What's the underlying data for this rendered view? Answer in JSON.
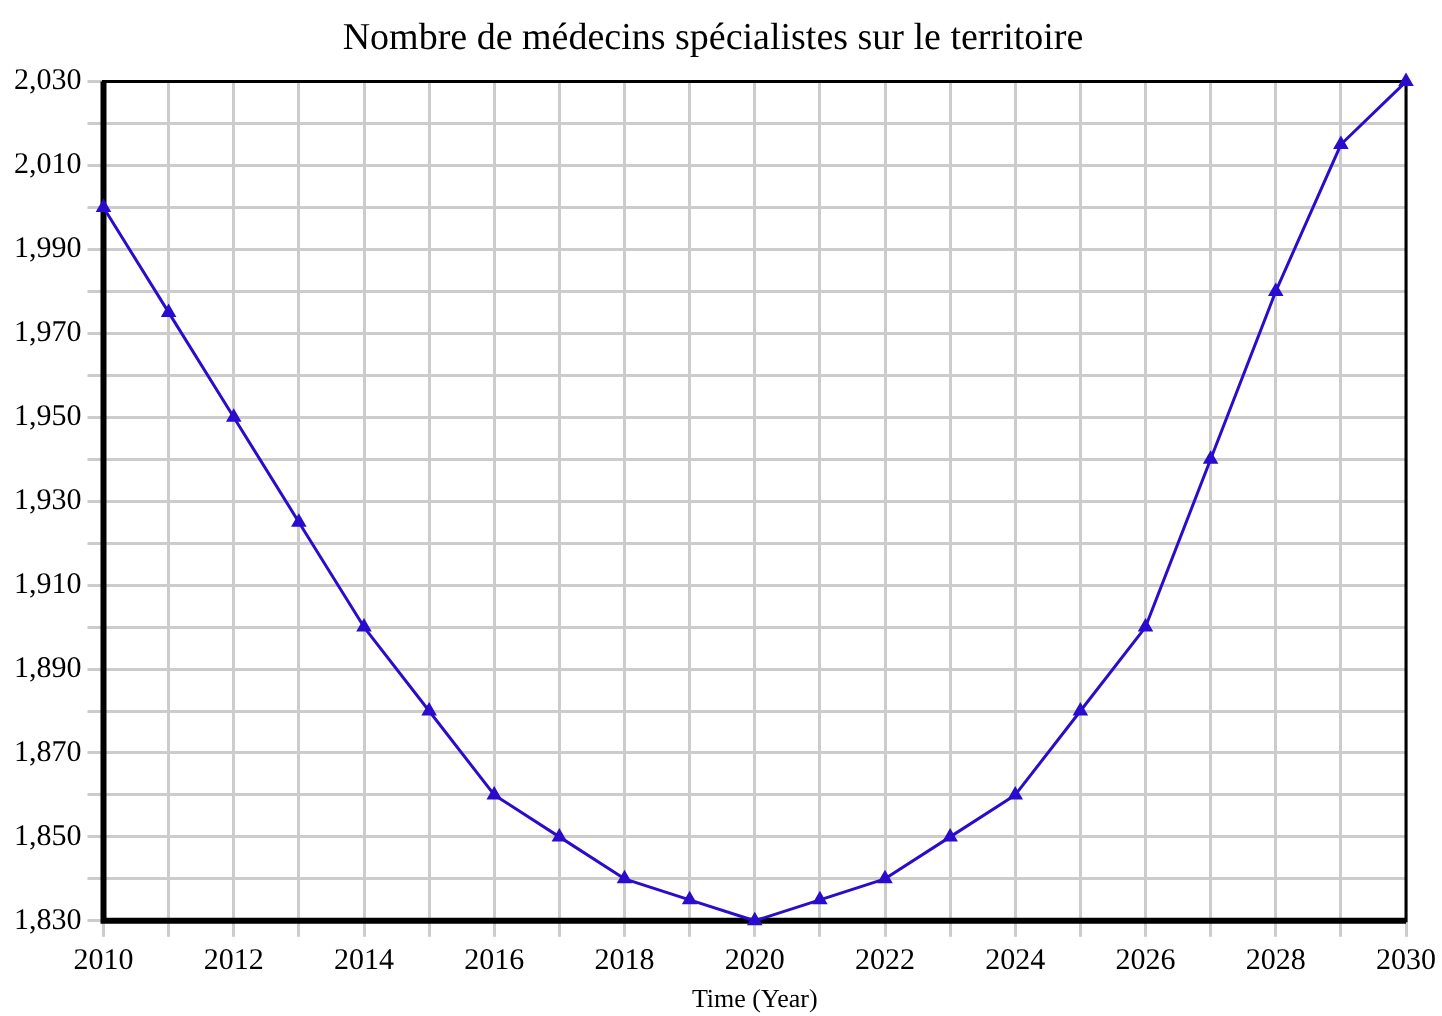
{
  "chart_data": {
    "type": "line",
    "title": "Nombre de médecins spécialistes sur le territoire",
    "xlabel": "Time (Year)",
    "x": [
      2010,
      2011,
      2012,
      2013,
      2014,
      2015,
      2016,
      2017,
      2018,
      2019,
      2020,
      2021,
      2022,
      2023,
      2024,
      2025,
      2026,
      2027,
      2028,
      2029,
      2030
    ],
    "series": [
      {
        "color": "#2a0ccc",
        "values": [
          2000,
          1975,
          1950,
          1925,
          1900,
          1880,
          1860,
          1850,
          1840,
          1835,
          1830,
          1835,
          1840,
          1850,
          1860,
          1880,
          1900,
          1940,
          1980,
          2015,
          2030
        ]
      }
    ],
    "xlim": [
      2010,
      2030
    ],
    "xticks": [
      2010,
      {
        "value": 2011,
        "label": null
      },
      2012,
      {
        "value": 2013,
        "label": null
      },
      2014,
      {
        "value": 2015,
        "label": null
      },
      2016,
      {
        "value": 2017,
        "label": null
      },
      2018,
      {
        "value": 2019,
        "label": null
      },
      2020,
      {
        "value": 2021,
        "label": null
      },
      2022,
      {
        "value": 2023,
        "label": null
      },
      2024,
      {
        "value": 2025,
        "label": null
      },
      2026,
      {
        "value": 2027,
        "label": null
      },
      2028,
      {
        "value": 2029,
        "label": null
      },
      2030
    ],
    "ylim": [
      1830,
      2030
    ],
    "yticks": [
      {
        "value": 1830,
        "label": "1,830"
      },
      {
        "value": 1840,
        "label": null
      },
      {
        "value": 1850,
        "label": "1,850"
      },
      {
        "value": 1860,
        "label": null
      },
      {
        "value": 1870,
        "label": "1,870"
      },
      {
        "value": 1880,
        "label": null
      },
      {
        "value": 1890,
        "label": "1,890"
      },
      {
        "value": 1900,
        "label": null
      },
      {
        "value": 1910,
        "label": "1,910"
      },
      {
        "value": 1920,
        "label": null
      },
      {
        "value": 1930,
        "label": "1,930"
      },
      {
        "value": 1940,
        "label": null
      },
      {
        "value": 1950,
        "label": "1,950"
      },
      {
        "value": 1960,
        "label": null
      },
      {
        "value": 1970,
        "label": "1,970"
      },
      {
        "value": 1980,
        "label": null
      },
      {
        "value": 1990,
        "label": "1,990"
      },
      {
        "value": 2000,
        "label": null
      },
      {
        "value": 2010,
        "label": "2,010"
      },
      {
        "value": 2020,
        "label": null
      },
      {
        "value": 2030,
        "label": "2,030"
      }
    ],
    "grid": true,
    "legend": false,
    "marker": "triangle",
    "line_style": "solid"
  }
}
